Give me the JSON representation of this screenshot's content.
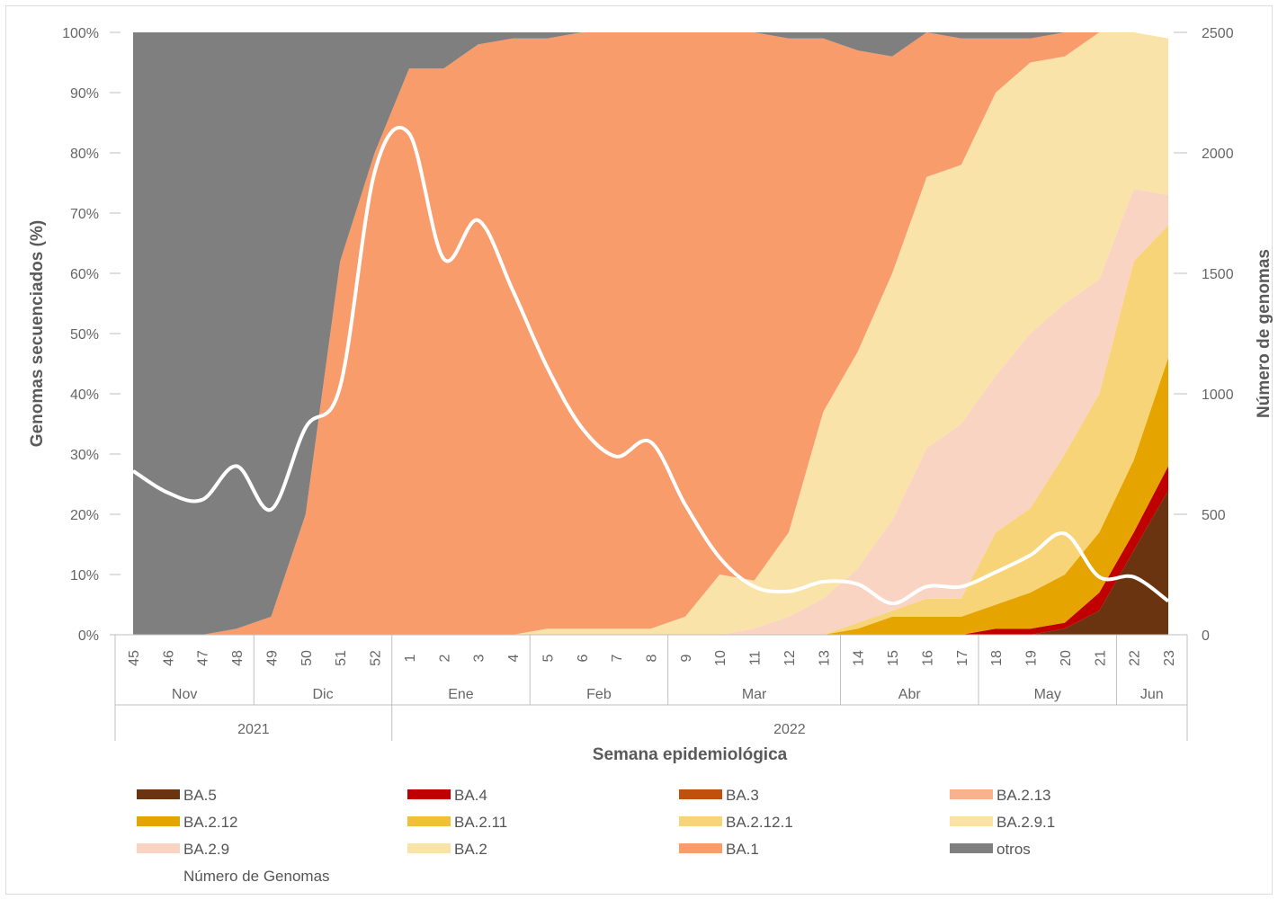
{
  "chart_data": {
    "type": "area",
    "stacked": true,
    "normalized": true,
    "xlabel": "Semana epidemiológica",
    "ylabel_left": "Genomas secuenciados (%)",
    "ylabel_right": "Número de genomas",
    "ylim_left": [
      0,
      100
    ],
    "ylim_right": [
      0,
      2500
    ],
    "yticks_left": [
      "0%",
      "10%",
      "20%",
      "30%",
      "40%",
      "50%",
      "60%",
      "70%",
      "80%",
      "90%",
      "100%"
    ],
    "yticks_right": [
      "0",
      "500",
      "1000",
      "1500",
      "2000",
      "2500"
    ],
    "grid": false,
    "legend_position": "bottom",
    "weeks": [
      "45",
      "46",
      "47",
      "48",
      "49",
      "50",
      "51",
      "52",
      "1",
      "2",
      "3",
      "4",
      "5",
      "6",
      "7",
      "8",
      "9",
      "10",
      "11",
      "12",
      "13",
      "14",
      "15",
      "16",
      "17",
      "18",
      "19",
      "20",
      "21",
      "22",
      "23"
    ],
    "months": [
      {
        "label": "Nov",
        "start": 0,
        "end": 3
      },
      {
        "label": "Dic",
        "start": 4,
        "end": 7
      },
      {
        "label": "Ene",
        "start": 8,
        "end": 11
      },
      {
        "label": "Feb",
        "start": 12,
        "end": 15
      },
      {
        "label": "Mar",
        "start": 16,
        "end": 20
      },
      {
        "label": "Abr",
        "start": 21,
        "end": 24
      },
      {
        "label": "May",
        "start": 25,
        "end": 28
      },
      {
        "label": "Jun",
        "start": 29,
        "end": 30
      }
    ],
    "years": [
      {
        "label": "2021",
        "start": 0,
        "end": 7
      },
      {
        "label": "2022",
        "start": 8,
        "end": 30
      }
    ],
    "series": [
      {
        "name": "BA.5",
        "color": "#6b3410",
        "values": [
          0,
          0,
          0,
          0,
          0,
          0,
          0,
          0,
          0,
          0,
          0,
          0,
          0,
          0,
          0,
          0,
          0,
          0,
          0,
          0,
          0,
          0,
          0,
          0,
          0,
          0,
          0,
          1,
          4,
          14,
          24
        ]
      },
      {
        "name": "BA.4",
        "color": "#c00000",
        "values": [
          0,
          0,
          0,
          0,
          0,
          0,
          0,
          0,
          0,
          0,
          0,
          0,
          0,
          0,
          0,
          0,
          0,
          0,
          0,
          0,
          0,
          0,
          0,
          0,
          0,
          1,
          1,
          1,
          3,
          3,
          4
        ]
      },
      {
        "name": "BA.3",
        "color": "#c0500c",
        "values": [
          0,
          0,
          0,
          0,
          0,
          0,
          0,
          0,
          0,
          0,
          0,
          0,
          0,
          0,
          0,
          0,
          0,
          0,
          0,
          0,
          0,
          0,
          0,
          0,
          0,
          0,
          0,
          0,
          0,
          0,
          0
        ]
      },
      {
        "name": "BA.2.13",
        "color": "#f8b28e",
        "values": [
          0,
          0,
          0,
          0,
          0,
          0,
          0,
          0,
          0,
          0,
          0,
          0,
          0,
          0,
          0,
          0,
          0,
          0,
          0,
          0,
          0,
          0,
          0,
          0,
          0,
          0,
          0,
          0,
          0,
          0,
          0
        ]
      },
      {
        "name": "BA.2.12",
        "color": "#e6a400",
        "values": [
          0,
          0,
          0,
          0,
          0,
          0,
          0,
          0,
          0,
          0,
          0,
          0,
          0,
          0,
          0,
          0,
          0,
          0,
          0,
          0,
          0,
          1,
          3,
          3,
          3,
          4,
          6,
          8,
          10,
          12,
          18
        ]
      },
      {
        "name": "BA.2.11",
        "color": "#f2bf38",
        "values": [
          0,
          0,
          0,
          0,
          0,
          0,
          0,
          0,
          0,
          0,
          0,
          0,
          0,
          0,
          0,
          0,
          0,
          0,
          0,
          0,
          0,
          0,
          0,
          0,
          0,
          0,
          0,
          0,
          0,
          0,
          0
        ]
      },
      {
        "name": "BA.2.12.1",
        "color": "#f8d478",
        "values": [
          0,
          0,
          0,
          0,
          0,
          0,
          0,
          0,
          0,
          0,
          0,
          0,
          0,
          0,
          0,
          0,
          0,
          0,
          0,
          0,
          0,
          1,
          1,
          3,
          3,
          12,
          14,
          20,
          23,
          33,
          22
        ]
      },
      {
        "name": "BA.2.9.1",
        "color": "#fbe1a2",
        "values": [
          0,
          0,
          0,
          0,
          0,
          0,
          0,
          0,
          0,
          0,
          0,
          0,
          0,
          0,
          0,
          0,
          0,
          0,
          0,
          0,
          0,
          0,
          0,
          0,
          0,
          0,
          0,
          0,
          0,
          0,
          0
        ]
      },
      {
        "name": "BA.2.9",
        "color": "#f9d4c2",
        "values": [
          0,
          0,
          0,
          0,
          0,
          0,
          0,
          0,
          0,
          0,
          0,
          0,
          0,
          0,
          0,
          0,
          0,
          0,
          1,
          3,
          6,
          9,
          15,
          25,
          29,
          26,
          29,
          25,
          19,
          12,
          5
        ]
      },
      {
        "name": "BA.2",
        "color": "#fae3a8",
        "values": [
          0,
          0,
          0,
          0,
          0,
          0,
          0,
          0,
          0,
          0,
          0,
          0,
          1,
          1,
          1,
          1,
          3,
          10,
          8,
          14,
          31,
          36,
          41,
          45,
          43,
          47,
          45,
          41,
          44,
          26,
          26
        ]
      },
      {
        "name": "BA.1",
        "color": "#f89c6c",
        "values": [
          0,
          0,
          0,
          1,
          3,
          20,
          62,
          80,
          94,
          94,
          98,
          99,
          98,
          99,
          99,
          99,
          97,
          90,
          91,
          82,
          62,
          50,
          36,
          24,
          21,
          9,
          4,
          4,
          2,
          1,
          0
        ]
      },
      {
        "name": "otros",
        "color": "#7f7f7f",
        "values": [
          100,
          100,
          100,
          99,
          97,
          80,
          38,
          20,
          6,
          6,
          2,
          1,
          1,
          0,
          0,
          0,
          0,
          0,
          0,
          1,
          1,
          3,
          5,
          0,
          1,
          1,
          1,
          1,
          0,
          0,
          0
        ]
      }
    ],
    "line": {
      "name": "Número de Genomas",
      "color": "#ffffff",
      "axis": "right",
      "values": [
        680,
        590,
        560,
        700,
        520,
        860,
        1030,
        1920,
        2080,
        1560,
        1720,
        1430,
        1110,
        860,
        740,
        800,
        540,
        320,
        200,
        180,
        220,
        210,
        130,
        200,
        200,
        260,
        330,
        420,
        240,
        240,
        140
      ]
    },
    "legend": [
      {
        "name": "BA.5",
        "color": "#6b3410"
      },
      {
        "name": "BA.4",
        "color": "#c00000"
      },
      {
        "name": "BA.3",
        "color": "#c0500c"
      },
      {
        "name": "BA.2.13",
        "color": "#f8b28e"
      },
      {
        "name": "BA.2.12",
        "color": "#e6a400"
      },
      {
        "name": "BA.2.11",
        "color": "#f2bf38"
      },
      {
        "name": "BA.2.12.1",
        "color": "#f8d478"
      },
      {
        "name": "BA.2.9.1",
        "color": "#fbe1a2"
      },
      {
        "name": "BA.2.9",
        "color": "#f9d4c2"
      },
      {
        "name": "BA.2",
        "color": "#fae3a8"
      },
      {
        "name": "BA.1",
        "color": "#f89c6c"
      },
      {
        "name": "otros",
        "color": "#7f7f7f"
      },
      {
        "name": "Número de Genomas",
        "color": "#ffffff"
      }
    ]
  }
}
